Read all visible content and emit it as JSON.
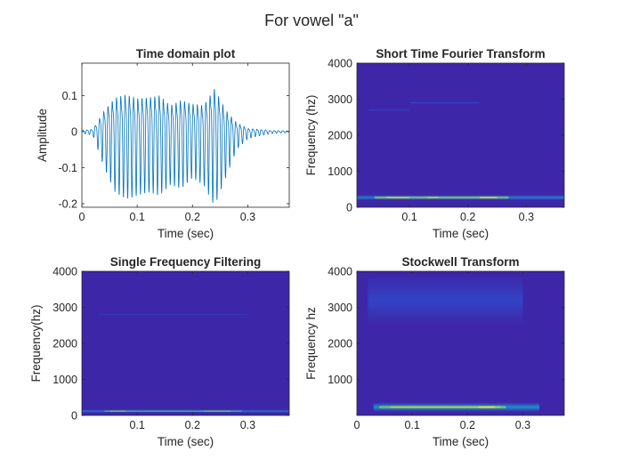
{
  "figure": {
    "suptitle": "For vowel \"a\""
  },
  "colors": {
    "bg": "#3e26a8",
    "line": "#0072bd",
    "band_low": "#2764e6",
    "band_mid": "#12bdba",
    "band_high": "#f9e02b",
    "axis": "#262626",
    "faint": "#3a53d6"
  },
  "chart_data": [
    {
      "id": "time",
      "type": "line",
      "title": "Time domain plot",
      "xlabel": "Time (sec)",
      "ylabel": "Amplitude",
      "xlim": [
        0,
        0.375
      ],
      "ylim": [
        -0.21,
        0.19
      ],
      "xticks": [
        0,
        0.1,
        0.2,
        0.3
      ],
      "xtick_labels": [
        "0",
        "0.1",
        "0.2",
        "0.3"
      ],
      "yticks": [
        -0.2,
        -0.1,
        0,
        0.1
      ],
      "ytick_labels": [
        "-0.2",
        "-0.1",
        "0",
        "0.1"
      ],
      "series": [
        {
          "values_desc": "oscillating speech waveform",
          "envelope_t": [
            0,
            0.02,
            0.04,
            0.06,
            0.08,
            0.1,
            0.12,
            0.14,
            0.16,
            0.18,
            0.2,
            0.22,
            0.24,
            0.26,
            0.28,
            0.3,
            0.32,
            0.34,
            0.375
          ],
          "envelope_upper": [
            0.005,
            0.01,
            0.09,
            0.15,
            0.165,
            0.15,
            0.15,
            0.16,
            0.12,
            0.14,
            0.12,
            0.12,
            0.19,
            0.1,
            0.04,
            0.015,
            0.01,
            0.005,
            0.003
          ],
          "envelope_lower": [
            -0.005,
            -0.01,
            -0.1,
            -0.17,
            -0.19,
            -0.18,
            -0.17,
            -0.18,
            -0.15,
            -0.16,
            -0.13,
            -0.15,
            -0.21,
            -0.13,
            -0.05,
            -0.02,
            -0.012,
            -0.006,
            -0.003
          ]
        }
      ]
    },
    {
      "id": "stft",
      "type": "heatmap",
      "title": "Short Time Fourier Transform",
      "xlabel": "Time (sec)",
      "ylabel": "Frequency (hz)",
      "xlim": [
        0.01,
        0.365
      ],
      "ylim": [
        0,
        4000
      ],
      "xticks": [
        0.1,
        0.2,
        0.3
      ],
      "xtick_labels": [
        "0.1",
        "0.2",
        "0.3"
      ],
      "yticks": [
        0,
        1000,
        2000,
        3000,
        4000
      ],
      "ytick_labels": [
        "0",
        "1000",
        "2000",
        "3000",
        "4000"
      ],
      "bands": [
        {
          "t0": 0.01,
          "t1": 0.365,
          "f": 270,
          "intensity": 0.35,
          "width": 150
        },
        {
          "t0": 0.04,
          "t1": 0.27,
          "f": 270,
          "intensity": 0.75,
          "width": 90
        },
        {
          "t0": 0.06,
          "t1": 0.1,
          "f": 270,
          "intensity": 0.9,
          "width": 60
        },
        {
          "t0": 0.13,
          "t1": 0.15,
          "f": 270,
          "intensity": 0.85,
          "width": 60
        },
        {
          "t0": 0.22,
          "t1": 0.25,
          "f": 270,
          "intensity": 1.0,
          "width": 60
        },
        {
          "t0": 0.1,
          "t1": 0.22,
          "f": 2900,
          "intensity": 0.12,
          "width": 60
        },
        {
          "t0": 0.03,
          "t1": 0.1,
          "f": 2700,
          "intensity": 0.1,
          "width": 50
        }
      ]
    },
    {
      "id": "sff",
      "type": "heatmap",
      "title": "Single Frequency Filtering",
      "xlabel": "Time (sec)",
      "ylabel": "Frequency(hz)",
      "xlim": [
        0,
        0.375
      ],
      "ylim": [
        0,
        4000
      ],
      "xticks": [
        0.1,
        0.2,
        0.3
      ],
      "xtick_labels": [
        "0.1",
        "0.2",
        "0.3"
      ],
      "yticks": [
        0,
        1000,
        2000,
        3000,
        4000
      ],
      "ytick_labels": [
        "0",
        "1000",
        "2000",
        "3000",
        "4000"
      ],
      "bands": [
        {
          "t0": 0.0,
          "t1": 0.375,
          "f": 120,
          "intensity": 0.3,
          "width": 90
        },
        {
          "t0": 0.04,
          "t1": 0.29,
          "f": 120,
          "intensity": 0.6,
          "width": 50
        },
        {
          "t0": 0.05,
          "t1": 0.08,
          "f": 120,
          "intensity": 0.8,
          "width": 40
        },
        {
          "t0": 0.22,
          "t1": 0.27,
          "f": 120,
          "intensity": 0.75,
          "width": 40
        },
        {
          "t0": 0.03,
          "t1": 0.3,
          "f": 2800,
          "intensity": 0.08,
          "width": 40
        }
      ]
    },
    {
      "id": "stockwell",
      "type": "heatmap",
      "title": "Stockwell Transform",
      "xlabel": "Time (sec)",
      "ylabel": "Frequency hz",
      "xlim": [
        0,
        0.375
      ],
      "ylim": [
        0,
        4000
      ],
      "xticks": [
        0,
        0.1,
        0.2,
        0.3
      ],
      "xtick_labels": [
        "0",
        "0.1",
        "0.2",
        "0.3"
      ],
      "yticks": [
        1000,
        2000,
        3000,
        4000
      ],
      "ytick_labels": [
        "1000",
        "2000",
        "3000",
        "4000"
      ],
      "bands": [
        {
          "t0": 0.03,
          "t1": 0.33,
          "f": 230,
          "intensity": 0.4,
          "width": 260
        },
        {
          "t0": 0.04,
          "t1": 0.27,
          "f": 230,
          "intensity": 0.7,
          "width": 110
        },
        {
          "t0": 0.06,
          "t1": 0.26,
          "f": 230,
          "intensity": 0.85,
          "width": 70
        },
        {
          "t0": 0.22,
          "t1": 0.25,
          "f": 230,
          "intensity": 1.0,
          "width": 70
        },
        {
          "t0": 0.02,
          "t1": 0.3,
          "f": 3200,
          "intensity": 0.1,
          "width": 1400
        }
      ]
    }
  ]
}
